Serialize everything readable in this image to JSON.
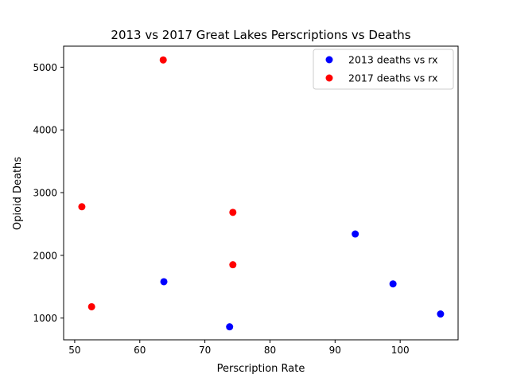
{
  "chart_data": {
    "type": "scatter",
    "title": "2013 vs 2017 Great Lakes Perscriptions vs Deaths",
    "xlabel": "Perscription Rate",
    "ylabel": "Opioid Deaths",
    "xlim": [
      48.3,
      108.9
    ],
    "ylim": [
      653,
      5335
    ],
    "xticks": [
      50,
      60,
      70,
      80,
      90,
      100
    ],
    "yticks": [
      1000,
      2000,
      3000,
      4000,
      5000
    ],
    "grid": false,
    "legend_position": "upper right",
    "series": [
      {
        "name": "2013 deaths vs rx",
        "color": "#0000ff",
        "points": [
          {
            "x": 63.7,
            "y": 1580
          },
          {
            "x": 73.8,
            "y": 860
          },
          {
            "x": 93.1,
            "y": 2340
          },
          {
            "x": 98.9,
            "y": 1545
          },
          {
            "x": 106.2,
            "y": 1065
          }
        ]
      },
      {
        "name": "2017 deaths vs rx",
        "color": "#ff0000",
        "points": [
          {
            "x": 51.1,
            "y": 2775
          },
          {
            "x": 52.6,
            "y": 1180
          },
          {
            "x": 63.6,
            "y": 5115
          },
          {
            "x": 74.3,
            "y": 2685
          },
          {
            "x": 74.3,
            "y": 1850
          }
        ]
      }
    ]
  }
}
